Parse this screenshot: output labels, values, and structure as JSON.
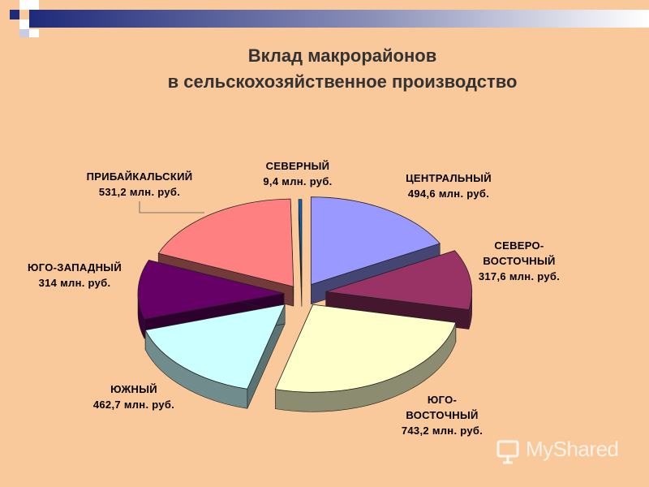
{
  "title_line1": "Вклад макрорайонов",
  "title_line2": "в сельскохозяйственное производство",
  "watermark": "MyShared",
  "colors": {
    "background": "#F9C89B",
    "bar_dark": "#1F2A7A",
    "bar_light": "#FFFFFF"
  },
  "chart_data": {
    "type": "pie",
    "style": "3d-exploded",
    "title": "Вклад макрорайонов в сельскохозяйственное производство",
    "slices": [
      {
        "label_lines": [
          "ЦЕНТРАЛЬНЫЙ",
          "494,6 млн. руб."
        ],
        "value": 494.6,
        "color": "#9999FF"
      },
      {
        "label_lines": [
          "СЕВЕРО-",
          "ВОСТОЧНЫЙ",
          "317,6 млн. руб."
        ],
        "value": 317.6,
        "color": "#993366"
      },
      {
        "label_lines": [
          "ЮГО-",
          "ВОСТОЧНЫЙ",
          "743,2 млн. руб."
        ],
        "value": 743.2,
        "color": "#FFFFCC"
      },
      {
        "label_lines": [
          "ЮЖНЫЙ",
          "462,7 млн. руб."
        ],
        "value": 462.7,
        "color": "#CCFFFF"
      },
      {
        "label_lines": [
          "ЮГО-ЗАПАДНЫЙ",
          "314 млн. руб."
        ],
        "value": 314,
        "color": "#660066"
      },
      {
        "label_lines": [
          "ПРИБАЙКАЛЬСКИЙ",
          "531,2 млн. руб."
        ],
        "value": 531.2,
        "color": "#FF8080"
      },
      {
        "label_lines": [
          "СЕВЕРНЫЙ",
          "9,4 млн. руб."
        ],
        "value": 9.4,
        "color": "#0066CC"
      }
    ]
  }
}
